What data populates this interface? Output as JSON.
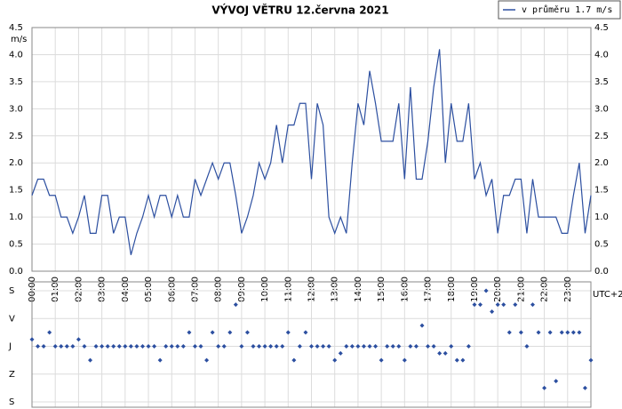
{
  "chart_data": [
    {
      "type": "line",
      "title": "VÝVOJ VĚTRU  12.června 2021",
      "y_label": "m/s",
      "x_label": "UTC+2",
      "grid": true,
      "x": [
        0,
        15,
        30,
        45,
        60,
        75,
        90,
        105,
        120,
        135,
        150,
        165,
        180,
        195,
        210,
        225,
        240,
        255,
        270,
        285,
        300,
        315,
        330,
        345,
        360,
        375,
        390,
        405,
        420,
        435,
        450,
        465,
        480,
        495,
        510,
        525,
        540,
        555,
        570,
        585,
        600,
        615,
        630,
        645,
        660,
        675,
        690,
        705,
        720,
        735,
        750,
        765,
        780,
        795,
        810,
        825,
        840,
        855,
        870,
        885,
        900,
        915,
        930,
        945,
        960,
        975,
        990,
        1005,
        1020,
        1035,
        1050,
        1065,
        1080,
        1095,
        1110,
        1125,
        1140,
        1155,
        1170,
        1185,
        1200,
        1215,
        1230,
        1245,
        1260,
        1275,
        1290,
        1305,
        1320,
        1335,
        1350,
        1365,
        1380,
        1395,
        1410,
        1425,
        1440
      ],
      "xlim": [
        0,
        1440
      ],
      "xticks": [
        {
          "value": 0,
          "label": "00:00"
        },
        {
          "value": 60,
          "label": "01:00"
        },
        {
          "value": 120,
          "label": "02:00"
        },
        {
          "value": 180,
          "label": "03:00"
        },
        {
          "value": 240,
          "label": "04:00"
        },
        {
          "value": 300,
          "label": "05:00"
        },
        {
          "value": 360,
          "label": "06:00"
        },
        {
          "value": 420,
          "label": "07:00"
        },
        {
          "value": 480,
          "label": "08:00"
        },
        {
          "value": 540,
          "label": "09:00"
        },
        {
          "value": 600,
          "label": "10:00"
        },
        {
          "value": 660,
          "label": "11:00"
        },
        {
          "value": 720,
          "label": "12:00"
        },
        {
          "value": 780,
          "label": "13:00"
        },
        {
          "value": 840,
          "label": "14:00"
        },
        {
          "value": 900,
          "label": "15:00"
        },
        {
          "value": 960,
          "label": "16:00"
        },
        {
          "value": 1020,
          "label": "17:00"
        },
        {
          "value": 1080,
          "label": "18:00"
        },
        {
          "value": 1140,
          "label": "19:00"
        },
        {
          "value": 1200,
          "label": "20:00"
        },
        {
          "value": 1260,
          "label": "21:00"
        },
        {
          "value": 1320,
          "label": "22:00"
        },
        {
          "value": 1380,
          "label": "23:00"
        }
      ],
      "ylim": [
        0,
        4.5
      ],
      "yticks": [
        {
          "value": 0,
          "label": "0.0"
        },
        0.5,
        {
          "value": 1,
          "label": "1.0"
        },
        1.5,
        {
          "value": 2,
          "label": "2.0"
        },
        2.5,
        {
          "value": 3,
          "label": "3.0"
        },
        3.5,
        {
          "value": 4,
          "label": "4.0"
        },
        4.5
      ],
      "series": [
        {
          "name": "v průměru 1.7 m/s",
          "color": "#2c4fa0",
          "values": [
            1.4,
            1.7,
            1.7,
            1.4,
            1.4,
            1.0,
            1.0,
            0.7,
            1.0,
            1.4,
            0.7,
            0.7,
            1.4,
            1.4,
            0.7,
            1.0,
            1.0,
            0.3,
            0.7,
            1.0,
            1.4,
            1.0,
            1.4,
            1.4,
            1.0,
            1.4,
            1.0,
            1.0,
            1.7,
            1.4,
            1.7,
            2.0,
            1.7,
            2.0,
            2.0,
            1.4,
            0.7,
            1.0,
            1.4,
            2.0,
            1.7,
            2.0,
            2.7,
            2.0,
            2.7,
            2.7,
            3.1,
            3.1,
            1.7,
            3.1,
            2.7,
            1.0,
            0.7,
            1.0,
            0.7,
            2.0,
            3.1,
            2.7,
            3.7,
            3.1,
            2.4,
            2.4,
            2.4,
            3.1,
            1.7,
            3.4,
            1.7,
            1.7,
            2.4,
            3.4,
            4.1,
            2.0,
            3.1,
            2.4,
            2.4,
            3.1,
            1.7,
            2.0,
            1.4,
            1.7,
            0.7,
            1.4,
            1.4,
            1.7,
            1.7,
            0.7,
            1.7,
            1.0,
            1.0,
            1.0,
            1.0,
            0.7,
            0.7,
            1.4,
            2.0,
            0.7,
            1.4
          ]
        }
      ]
    },
    {
      "type": "scatter",
      "grid": true,
      "color": "#2c4fa0",
      "x": [
        0,
        15,
        30,
        45,
        60,
        75,
        90,
        105,
        120,
        135,
        150,
        165,
        180,
        195,
        210,
        225,
        240,
        255,
        270,
        285,
        300,
        315,
        330,
        345,
        360,
        375,
        390,
        405,
        420,
        435,
        450,
        465,
        480,
        495,
        510,
        525,
        540,
        555,
        570,
        585,
        600,
        615,
        630,
        645,
        660,
        675,
        690,
        705,
        720,
        735,
        750,
        765,
        780,
        795,
        810,
        825,
        840,
        855,
        870,
        885,
        900,
        915,
        930,
        945,
        960,
        975,
        990,
        1005,
        1020,
        1035,
        1050,
        1065,
        1080,
        1095,
        1110,
        1125,
        1140,
        1155,
        1170,
        1185,
        1200,
        1215,
        1230,
        1245,
        1260,
        1275,
        1290,
        1305,
        1320,
        1335,
        1350,
        1365,
        1380,
        1395,
        1410,
        1425,
        1440
      ],
      "xlim": [
        0,
        1440
      ],
      "xticks": [
        0,
        60,
        120,
        180,
        240,
        300,
        360,
        420,
        480,
        540,
        600,
        660,
        720,
        780,
        840,
        900,
        960,
        1020,
        1080,
        1140,
        1200,
        1260,
        1320,
        1380
      ],
      "ylim": [
        360,
        0
      ],
      "yticks": [
        {
          "value": 0,
          "label": "S"
        },
        {
          "value": 90,
          "label": "V"
        },
        {
          "value": 180,
          "label": "J"
        },
        {
          "value": 270,
          "label": "Z"
        },
        {
          "value": 360,
          "label": "S"
        }
      ],
      "values": [
        157.5,
        180,
        180,
        135,
        180,
        180,
        180,
        180,
        157.5,
        180,
        225,
        180,
        180,
        180,
        180,
        180,
        180,
        180,
        180,
        180,
        180,
        180,
        225,
        180,
        180,
        180,
        180,
        135,
        180,
        180,
        225,
        135,
        180,
        180,
        135,
        45,
        180,
        135,
        180,
        180,
        180,
        180,
        180,
        180,
        135,
        225,
        180,
        135,
        180,
        180,
        180,
        180,
        225,
        202.5,
        180,
        180,
        180,
        180,
        180,
        180,
        225,
        180,
        180,
        180,
        225,
        180,
        180,
        112.5,
        180,
        180,
        202.5,
        202.5,
        180,
        225,
        225,
        180,
        45,
        45,
        0,
        67.5,
        45,
        45,
        135,
        45,
        135,
        180,
        45,
        135,
        315,
        135,
        292.5,
        135,
        135,
        135,
        135,
        315,
        225
      ]
    }
  ]
}
